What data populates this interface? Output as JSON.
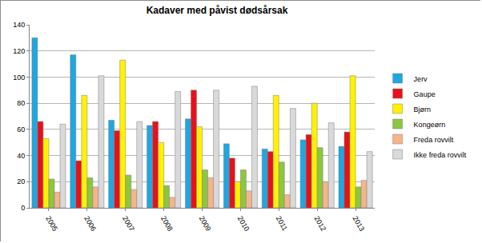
{
  "chart_data": {
    "type": "bar",
    "title": "Kadaver med påvist dødsårsak",
    "categories": [
      "2005",
      "2006",
      "2007",
      "2008",
      "2009",
      "2010",
      "2011",
      "2012",
      "2013"
    ],
    "series": [
      {
        "name": "Jerv",
        "color": "#1ea7e1",
        "values": [
          130,
          117,
          67,
          63,
          68,
          49,
          45,
          52,
          47
        ]
      },
      {
        "name": "Gaupe",
        "color": "#e8101a",
        "values": [
          66,
          36,
          59,
          66,
          90,
          38,
          43,
          56,
          58
        ]
      },
      {
        "name": "Bjørn",
        "color": "#fff200",
        "values": [
          53,
          86,
          113,
          50,
          62,
          20,
          86,
          80,
          101
        ]
      },
      {
        "name": "Kongeørn",
        "color": "#8dc63f",
        "values": [
          22,
          23,
          25,
          17,
          29,
          29,
          35,
          46,
          16
        ]
      },
      {
        "name": "Freda rovvilt",
        "color": "#f7b48a",
        "values": [
          12,
          16,
          14,
          8,
          23,
          13,
          10,
          20,
          21
        ]
      },
      {
        "name": "Ikke freda rovvilt",
        "color": "#d9d9d9",
        "values": [
          64,
          101,
          66,
          89,
          90,
          93,
          76,
          65,
          43
        ]
      }
    ],
    "ylim": [
      0,
      140
    ],
    "yticks": [
      0,
      20,
      40,
      60,
      80,
      100,
      120,
      140
    ],
    "grid": true,
    "legend": "right"
  }
}
